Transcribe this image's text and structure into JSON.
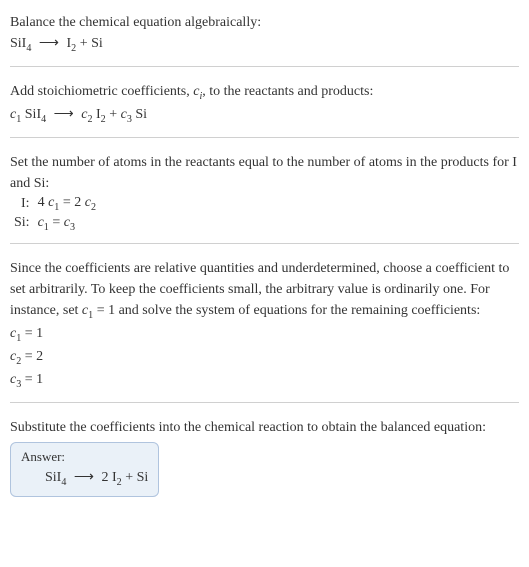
{
  "block1": {
    "intro": "Balance the chemical equation algebraically:",
    "eq_left": "SiI",
    "eq_left_sub": "4",
    "arrow": "⟶",
    "eq_r1": "I",
    "eq_r1_sub": "2",
    "plus": " + ",
    "eq_r2": "Si"
  },
  "block2": {
    "intro1": "Add stoichiometric coefficients, ",
    "ci": "c",
    "ci_sub": "i",
    "intro2": ", to the reactants and products:",
    "c1": "c",
    "c1_sub": "1",
    "sp1": " SiI",
    "sp1_sub": "4",
    "arrow": "⟶",
    "c2": "c",
    "c2_sub": "2",
    "sp2": " I",
    "sp2_sub": "2",
    "plus": " + ",
    "c3": "c",
    "c3_sub": "3",
    "sp3": " Si"
  },
  "block3": {
    "intro": "Set the number of atoms in the reactants equal to the number of atoms in the products for I and Si:",
    "row1_lbl": "I:",
    "row1_eq_a": "4 ",
    "row1_eq_b": "c",
    "row1_eq_bsub": "1",
    "row1_eq_c": " = 2 ",
    "row1_eq_d": "c",
    "row1_eq_dsub": "2",
    "row2_lbl": "Si:",
    "row2_eq_a": "c",
    "row2_eq_asub": "1",
    "row2_eq_b": " = ",
    "row2_eq_c": "c",
    "row2_eq_csub": "3"
  },
  "block4": {
    "intro1": "Since the coefficients are relative quantities and underdetermined, choose a coefficient to set arbitrarily. To keep the coefficients small, the arbitrary value is ordinarily one. For instance, set ",
    "c1": "c",
    "c1_sub": "1",
    "intro2": " = 1 and solve the system of equations for the remaining coefficients:",
    "l1a": "c",
    "l1asub": "1",
    "l1b": " = 1",
    "l2a": "c",
    "l2asub": "2",
    "l2b": " = 2",
    "l3a": "c",
    "l3asub": "3",
    "l3b": " = 1"
  },
  "block5": {
    "intro": "Substitute the coefficients into the chemical reaction to obtain the balanced equation:",
    "answer_title": "Answer:",
    "eq_l": "SiI",
    "eq_l_sub": "4",
    "arrow": "⟶",
    "eq_r1a": "2 I",
    "eq_r1_sub": "2",
    "plus": " + ",
    "eq_r2": "Si"
  }
}
